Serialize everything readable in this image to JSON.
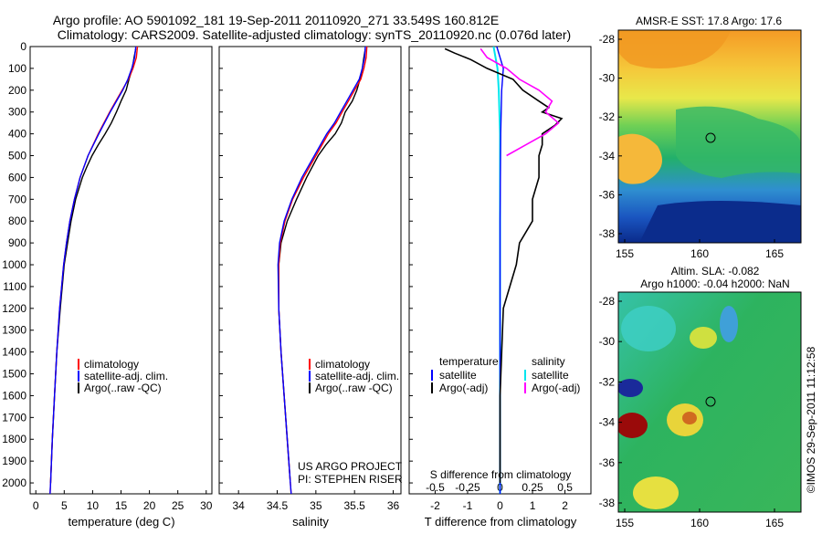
{
  "header": {
    "line1": "Argo profile: AO 5901092_181 19-Sep-2011 20110920_271 33.549S 160.812E",
    "line2": "Climatology: CARS2009. Satellite-adjusted climatology: synTS_20110920.nc (0.076d later)"
  },
  "depth_ticks": [
    0,
    100,
    200,
    300,
    400,
    500,
    600,
    700,
    800,
    900,
    1000,
    1100,
    1200,
    1300,
    1400,
    1500,
    1600,
    1700,
    1800,
    1900,
    2000
  ],
  "temp_panel": {
    "xlabel": "temperature (deg C)",
    "xticks": [
      0,
      5,
      10,
      15,
      20,
      25,
      30
    ],
    "xlim": [
      -1,
      31
    ],
    "legend": [
      "climatology",
      "satellite-adj. clim.",
      "Argo(..raw -QC)"
    ]
  },
  "sal_panel": {
    "xlabel": "salinity",
    "xticks": [
      "34",
      "34.5",
      "35",
      "35.5",
      "36"
    ],
    "xlim": [
      33.75,
      36.1
    ],
    "legend": [
      "climatology",
      "satellite-adj. clim.",
      "Argo(..raw -QC)"
    ],
    "credit1": "US ARGO PROJECT",
    "credit2": "PI: STEPHEN RISER"
  },
  "diff_panel": {
    "xlabel": "T difference from climatology",
    "top_label": "S difference from climatology",
    "t_ticks": [
      "-2",
      "-1",
      "0",
      "1",
      "2"
    ],
    "s_ticks": [
      "-0.5",
      "-0.25",
      "0",
      "0.25",
      "0.5"
    ],
    "xlim": [
      -2.8,
      2.8
    ],
    "legend_temp_title": "temperature",
    "legend_sal_title": "salinity",
    "legend_items": [
      "satellite",
      "Argo(-adj)",
      "satellite",
      "Argo(-adj)"
    ]
  },
  "map_sst": {
    "title": "AMSR-E SST: 17.8 Argo: 17.6",
    "yticks": [
      "-28",
      "-30",
      "-32",
      "-34",
      "-36",
      "-38"
    ],
    "xticks": [
      "155",
      "160",
      "165"
    ]
  },
  "map_sla": {
    "title1": "Altim. SLA: -0.082",
    "title2": "Argo h1000: -0.04 h2000: NaN",
    "yticks": [
      "-28",
      "-30",
      "-32",
      "-34",
      "-36",
      "-38"
    ],
    "xticks": [
      "155",
      "160",
      "165"
    ]
  },
  "credit_vertical": "©IMOS 29-Sep-2011 11:12:58",
  "colors": {
    "climatology": "#ff0000",
    "satellite": "#0000ff",
    "argo": "#000000",
    "sal_satellite": "#00e5ee",
    "sal_argo": "#ff00ff"
  },
  "chart_data": [
    {
      "type": "line",
      "xlabel": "temperature (deg C)",
      "ylabel": "",
      "xlim": [
        -1,
        31
      ],
      "ylim": [
        2050,
        0
      ],
      "series": [
        {
          "name": "climatology",
          "depth": [
            0,
            50,
            100,
            150,
            200,
            300,
            400,
            500,
            600,
            700,
            800,
            900,
            1000,
            1200,
            1400,
            1600,
            1800,
            2000,
            2050
          ],
          "values": [
            17.9,
            17.7,
            17.1,
            16.3,
            15.2,
            13.0,
            11.0,
            9.2,
            7.8,
            6.8,
            6.0,
            5.4,
            4.9,
            4.2,
            3.7,
            3.3,
            2.9,
            2.6,
            2.5
          ]
        },
        {
          "name": "satellite-adj. clim.",
          "depth": [
            0,
            50,
            100,
            150,
            200,
            300,
            400,
            500,
            600,
            700,
            800,
            900,
            1000,
            1200,
            1400,
            1600,
            1800,
            2000,
            2050
          ],
          "values": [
            17.6,
            17.4,
            16.9,
            16.2,
            15.3,
            13.1,
            11.1,
            9.2,
            7.8,
            6.8,
            6.0,
            5.4,
            4.9,
            4.2,
            3.7,
            3.3,
            2.9,
            2.6,
            2.5
          ]
        },
        {
          "name": "Argo(..raw -QC)",
          "depth": [
            10,
            50,
            100,
            150,
            200,
            250,
            300,
            350,
            400,
            450,
            500,
            550,
            600,
            700,
            800,
            900,
            1000,
            1200,
            1400,
            1600,
            1800,
            2000
          ],
          "values": [
            17.6,
            17.3,
            17.0,
            16.4,
            15.9,
            15.0,
            14.2,
            13.3,
            12.2,
            11.0,
            9.9,
            9.0,
            8.2,
            7.0,
            6.2,
            5.6,
            5.0,
            4.3,
            3.7,
            3.3,
            2.9,
            2.6
          ]
        }
      ]
    },
    {
      "type": "line",
      "xlabel": "salinity",
      "ylabel": "",
      "xlim": [
        33.75,
        36.1
      ],
      "ylim": [
        2050,
        0
      ],
      "series": [
        {
          "name": "climatology",
          "depth": [
            0,
            50,
            100,
            150,
            200,
            250,
            300,
            350,
            400,
            500,
            600,
            700,
            800,
            900,
            1000,
            1200,
            1400,
            1600,
            1800,
            2000,
            2050
          ],
          "values": [
            35.66,
            35.65,
            35.62,
            35.58,
            35.5,
            35.42,
            35.34,
            35.26,
            35.16,
            35.0,
            34.84,
            34.7,
            34.6,
            34.54,
            34.52,
            34.52,
            34.55,
            34.59,
            34.63,
            34.67,
            34.68
          ]
        },
        {
          "name": "satellite-adj. clim.",
          "depth": [
            0,
            50,
            100,
            150,
            200,
            250,
            300,
            350,
            400,
            500,
            600,
            700,
            800,
            900,
            1000,
            1200,
            1400,
            1600,
            1800,
            2000,
            2050
          ],
          "values": [
            35.64,
            35.63,
            35.6,
            35.56,
            35.48,
            35.4,
            35.32,
            35.24,
            35.14,
            34.98,
            34.82,
            34.69,
            34.59,
            34.53,
            34.51,
            34.52,
            34.55,
            34.59,
            34.63,
            34.67,
            34.68
          ]
        },
        {
          "name": "Argo(..raw -QC)",
          "depth": [
            10,
            50,
            100,
            150,
            200,
            250,
            300,
            350,
            400,
            450,
            500,
            600,
            700,
            800,
            900,
            1000,
            1200,
            1400,
            1600,
            1800,
            2000
          ],
          "values": [
            35.64,
            35.62,
            35.6,
            35.57,
            35.53,
            35.47,
            35.38,
            35.33,
            35.25,
            35.13,
            35.03,
            34.88,
            34.75,
            34.63,
            34.55,
            34.52,
            34.52,
            34.55,
            34.59,
            34.63,
            34.67
          ]
        }
      ]
    },
    {
      "type": "line",
      "xlabel": "T difference from climatology",
      "ylabel": "",
      "xlim": [
        -2.8,
        2.8
      ],
      "ylim": [
        2050,
        0
      ],
      "series": [
        {
          "name": "temperature satellite",
          "depth": [
            0,
            100,
            200,
            400,
            800,
            1200,
            1600,
            2050
          ],
          "values": [
            -0.1,
            0.1,
            0.05,
            0.02,
            0.0,
            0.0,
            0.0,
            0.0
          ]
        },
        {
          "name": "temperature Argo(-adj)",
          "depth": [
            10,
            30,
            60,
            100,
            150,
            200,
            250,
            280,
            300,
            330,
            360,
            400,
            450,
            500,
            600,
            700,
            800,
            900,
            1000,
            1200,
            1400,
            1600,
            1800,
            2000
          ],
          "values": [
            -1.7,
            -1.4,
            -0.9,
            -0.4,
            0.4,
            0.7,
            1.2,
            1.5,
            1.3,
            1.9,
            1.7,
            1.3,
            1.3,
            1.2,
            1.2,
            1.0,
            1.0,
            0.6,
            0.5,
            0.1,
            0.05,
            0.0,
            0.0,
            0.0
          ]
        },
        {
          "name": "salinity satellite",
          "depth": [
            0,
            100,
            200,
            400,
            800,
            1200,
            1600,
            2050
          ],
          "values": [
            -0.05,
            -0.02,
            -0.01,
            0.0,
            0.0,
            0.0,
            0.0,
            0.0
          ]
        },
        {
          "name": "salinity Argo(-adj)",
          "depth": [
            10,
            50,
            100,
            150,
            200,
            250,
            300,
            350,
            400,
            450,
            500
          ],
          "values": [
            -0.15,
            -0.1,
            0.05,
            0.15,
            0.3,
            0.4,
            0.35,
            0.45,
            0.35,
            0.2,
            0.05
          ]
        }
      ]
    }
  ]
}
